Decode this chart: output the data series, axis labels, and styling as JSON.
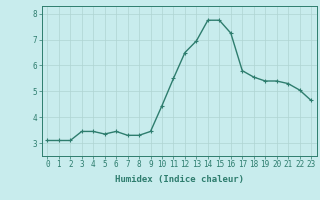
{
  "x": [
    0,
    1,
    2,
    3,
    4,
    5,
    6,
    7,
    8,
    9,
    10,
    11,
    12,
    13,
    14,
    15,
    16,
    17,
    18,
    19,
    20,
    21,
    22,
    23
  ],
  "y": [
    3.1,
    3.1,
    3.1,
    3.45,
    3.45,
    3.35,
    3.45,
    3.3,
    3.3,
    3.45,
    4.45,
    5.5,
    6.5,
    6.95,
    7.75,
    7.75,
    7.25,
    5.8,
    5.55,
    5.4,
    5.4,
    5.3,
    5.05,
    4.65
  ],
  "line_color": "#2e7d6e",
  "bg_color": "#c8eced",
  "grid_color": "#afd4d2",
  "xlabel": "Humidex (Indice chaleur)",
  "ylim": [
    2.5,
    8.3
  ],
  "xlim": [
    -0.5,
    23.5
  ],
  "yticks": [
    3,
    4,
    5,
    6,
    7,
    8
  ],
  "xticks": [
    0,
    1,
    2,
    3,
    4,
    5,
    6,
    7,
    8,
    9,
    10,
    11,
    12,
    13,
    14,
    15,
    16,
    17,
    18,
    19,
    20,
    21,
    22,
    23
  ],
  "tick_color": "#2e7d6e",
  "label_color": "#2e7d6e",
  "spine_color": "#2e7d6e",
  "font_size_xlabel": 6.5,
  "font_size_ticks": 5.5,
  "line_width": 1.0,
  "marker_size_val": 2.5
}
